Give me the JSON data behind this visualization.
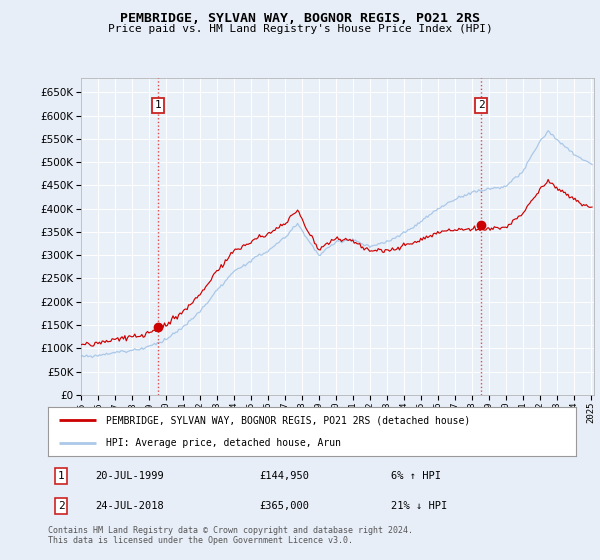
{
  "title": "PEMBRIDGE, SYLVAN WAY, BOGNOR REGIS, PO21 2RS",
  "subtitle": "Price paid vs. HM Land Registry's House Price Index (HPI)",
  "legend_line1": "PEMBRIDGE, SYLVAN WAY, BOGNOR REGIS, PO21 2RS (detached house)",
  "legend_line2": "HPI: Average price, detached house, Arun",
  "footer1": "Contains HM Land Registry data © Crown copyright and database right 2024.",
  "footer2": "This data is licensed under the Open Government Licence v3.0.",
  "annotation1_date": "20-JUL-1999",
  "annotation1_price": "£144,950",
  "annotation1_hpi": "6% ↑ HPI",
  "annotation2_date": "24-JUL-2018",
  "annotation2_price": "£365,000",
  "annotation2_hpi": "21% ↓ HPI",
  "sale1_year": 1999.55,
  "sale1_price": 144950,
  "sale2_year": 2018.55,
  "sale2_price": 365000,
  "hpi_color": "#aac8e8",
  "price_color": "#cc0000",
  "background_color": "#e8eef8",
  "plot_bg_color": "#eaf0f8",
  "grid_color": "#c8d4e4",
  "ylim_min": 0,
  "ylim_max": 680000,
  "xlim_min": 1995,
  "xlim_max": 2025.2
}
